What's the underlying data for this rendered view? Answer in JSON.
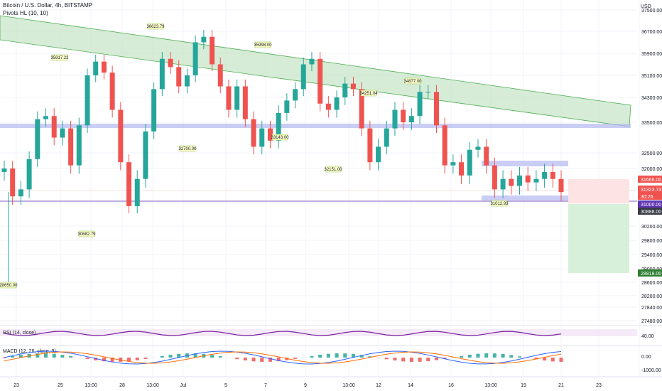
{
  "header": {
    "symbol_line": "Bitcoin / U.S. Dollar, 4h, BITSTAMP",
    "indicator": "Pivots HL (10, 10)",
    "currency": "USD"
  },
  "colors": {
    "up": "#26a69a",
    "down": "#ef5350",
    "channel_fill": "#c8e6c9",
    "channel_stroke": "#4caf50",
    "zone": "#b4b8f0",
    "rsi": "#7b1fa2",
    "macd": "#2962ff",
    "signal": "#ff6d00"
  },
  "chart_data": {
    "type": "candlestick",
    "y_ticks": [
      "37500.00",
      "36700.00",
      "35900.00",
      "35100.00",
      "34300.00",
      "33500.00",
      "32500.00",
      "32000.00",
      "31000.00",
      "30200.00",
      "29800.00",
      "29400.00",
      "29000.00",
      "28600.00",
      "28200.00",
      "27840.00",
      "27480.00"
    ],
    "x_ticks": [
      "23",
      "25",
      "13:00",
      "28",
      "13:00",
      "Jul",
      "5",
      "7",
      "9",
      "13:00",
      "12",
      "14",
      "16",
      "13:00",
      "19",
      "21",
      "23"
    ],
    "price_tags": [
      {
        "label": "31666.00",
        "color": "#ef5350"
      },
      {
        "label": "31323.73",
        "color": "#ef5350"
      },
      {
        "label": "30:26",
        "color": "#ef5350"
      },
      {
        "label": "31000.00",
        "color": "#5e35b1"
      },
      {
        "label": "30888.00",
        "color": "#363a45"
      },
      {
        "label": "28818.00",
        "color": "#2e7d32"
      }
    ],
    "pivots": [
      "28650.00",
      "30682.79",
      "35917.22",
      "36623.79",
      "32700.00",
      "35998.00",
      "33143.00",
      "32151.00",
      "34251.04",
      "34877.00",
      "31012.93"
    ],
    "candles_close": [
      32000,
      31200,
      31400,
      32300,
      33600,
      33700,
      33000,
      33300,
      32100,
      33400,
      35100,
      35600,
      35200,
      33900,
      32200,
      30900,
      31700,
      33200,
      34600,
      35700,
      35400,
      34700,
      35100,
      36300,
      36500,
      35500,
      34700,
      33900,
      34700,
      33600,
      32700,
      33300,
      32900,
      33800,
      34200,
      34600,
      35500,
      35700,
      34100,
      33900,
      34300,
      34800,
      34600,
      33300,
      32200,
      32700,
      33300,
      33900,
      33500,
      33700,
      34500,
      34500,
      33400,
      32100,
      32200,
      31800,
      32600,
      32700,
      32100,
      31400,
      31700,
      31500,
      31800,
      31600,
      31700,
      31900,
      31700,
      31323
    ],
    "rsi": {
      "label": "RSI (14, close)",
      "value": "40.00"
    },
    "macd": {
      "label": "MACD (12, 26, close, 9)",
      "values": [
        "0.00",
        "-1000.00"
      ]
    }
  }
}
